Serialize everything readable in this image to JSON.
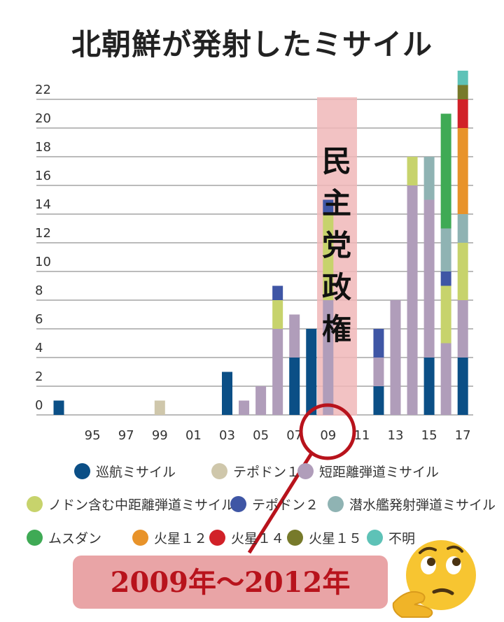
{
  "title": "北朝鮮が発射したミサイル",
  "chart_data": {
    "type": "bar",
    "stacked": true,
    "title": "北朝鮮が発射したミサイル",
    "x_tick_labels": [
      "95",
      "97",
      "99",
      "01",
      "03",
      "05",
      "07",
      "09",
      "11",
      "13",
      "15",
      "17"
    ],
    "x": [
      1993,
      1994,
      1995,
      1996,
      1997,
      1998,
      1999,
      2000,
      2001,
      2002,
      2003,
      2004,
      2005,
      2006,
      2007,
      2008,
      2009,
      2010,
      2011,
      2012,
      2013,
      2014,
      2015,
      2016,
      2017
    ],
    "y_ticks": [
      0,
      2,
      4,
      6,
      8,
      10,
      12,
      14,
      16,
      18,
      20,
      22
    ],
    "ylim": [
      0,
      23
    ],
    "grid": true,
    "series": [
      {
        "name": "巡航ミサイル",
        "color": "#0b4f86",
        "values": [
          1,
          0,
          0,
          0,
          0,
          0,
          0,
          0,
          0,
          0,
          3,
          0,
          0,
          0,
          4,
          6,
          0,
          0,
          0,
          2,
          0,
          0,
          4,
          0,
          4
        ]
      },
      {
        "name": "テポドン１",
        "color": "#cfc7ab",
        "values": [
          0,
          0,
          0,
          0,
          0,
          0,
          1,
          0,
          0,
          0,
          0,
          0,
          0,
          0,
          0,
          0,
          0,
          0,
          0,
          0,
          0,
          0,
          0,
          0,
          0
        ]
      },
      {
        "name": "短距離弾道ミサイル",
        "color": "#b09dba",
        "values": [
          0,
          0,
          0,
          0,
          0,
          0,
          0,
          0,
          0,
          0,
          0,
          1,
          2,
          6,
          3,
          0,
          8,
          0,
          0,
          2,
          8,
          16,
          11,
          5,
          4
        ]
      },
      {
        "name": "ノドン含む中距離弾道ミサイル",
        "color": "#c7d36c",
        "values": [
          0,
          0,
          0,
          0,
          0,
          0,
          0,
          0,
          0,
          0,
          0,
          0,
          0,
          2,
          0,
          0,
          6,
          0,
          0,
          0,
          0,
          2,
          0,
          4,
          4
        ]
      },
      {
        "name": "テポドン２",
        "color": "#3f56a5",
        "values": [
          0,
          0,
          0,
          0,
          0,
          0,
          0,
          0,
          0,
          0,
          0,
          0,
          0,
          1,
          0,
          0,
          1,
          0,
          0,
          2,
          0,
          0,
          0,
          1,
          0
        ]
      },
      {
        "name": "潜水艦発射弾道ミサイル",
        "color": "#8fb3b3",
        "values": [
          0,
          0,
          0,
          0,
          0,
          0,
          0,
          0,
          0,
          0,
          0,
          0,
          0,
          0,
          0,
          0,
          0,
          0,
          0,
          0,
          0,
          0,
          3,
          3,
          2
        ]
      },
      {
        "name": "ムスダン",
        "color": "#3faa55",
        "values": [
          0,
          0,
          0,
          0,
          0,
          0,
          0,
          0,
          0,
          0,
          0,
          0,
          0,
          0,
          0,
          0,
          0,
          0,
          0,
          0,
          0,
          0,
          0,
          8,
          0
        ]
      },
      {
        "name": "火星１２",
        "color": "#e8932a",
        "values": [
          0,
          0,
          0,
          0,
          0,
          0,
          0,
          0,
          0,
          0,
          0,
          0,
          0,
          0,
          0,
          0,
          0,
          0,
          0,
          0,
          0,
          0,
          0,
          0,
          6
        ]
      },
      {
        "name": "火星１４",
        "color": "#d12128",
        "values": [
          0,
          0,
          0,
          0,
          0,
          0,
          0,
          0,
          0,
          0,
          0,
          0,
          0,
          0,
          0,
          0,
          0,
          0,
          0,
          0,
          0,
          0,
          0,
          0,
          2
        ]
      },
      {
        "name": "火星１５",
        "color": "#777a2b",
        "values": [
          0,
          0,
          0,
          0,
          0,
          0,
          0,
          0,
          0,
          0,
          0,
          0,
          0,
          0,
          0,
          0,
          0,
          0,
          0,
          0,
          0,
          0,
          0,
          0,
          1
        ]
      },
      {
        "name": "不明",
        "color": "#5ec2b7",
        "values": [
          0,
          0,
          0,
          0,
          0,
          0,
          0,
          0,
          0,
          0,
          0,
          0,
          0,
          0,
          0,
          0,
          0,
          0,
          0,
          0,
          0,
          0,
          0,
          0,
          1
        ]
      }
    ],
    "annotations": {
      "highlight_label": "民主党政権",
      "highlight_range": [
        2009,
        2012
      ],
      "highlight_color": "#f0b7b9",
      "callout_text": "2009年〜2012年",
      "callout_color": "#b8131c"
    }
  },
  "emoji_icon": "thinking-face-icon"
}
